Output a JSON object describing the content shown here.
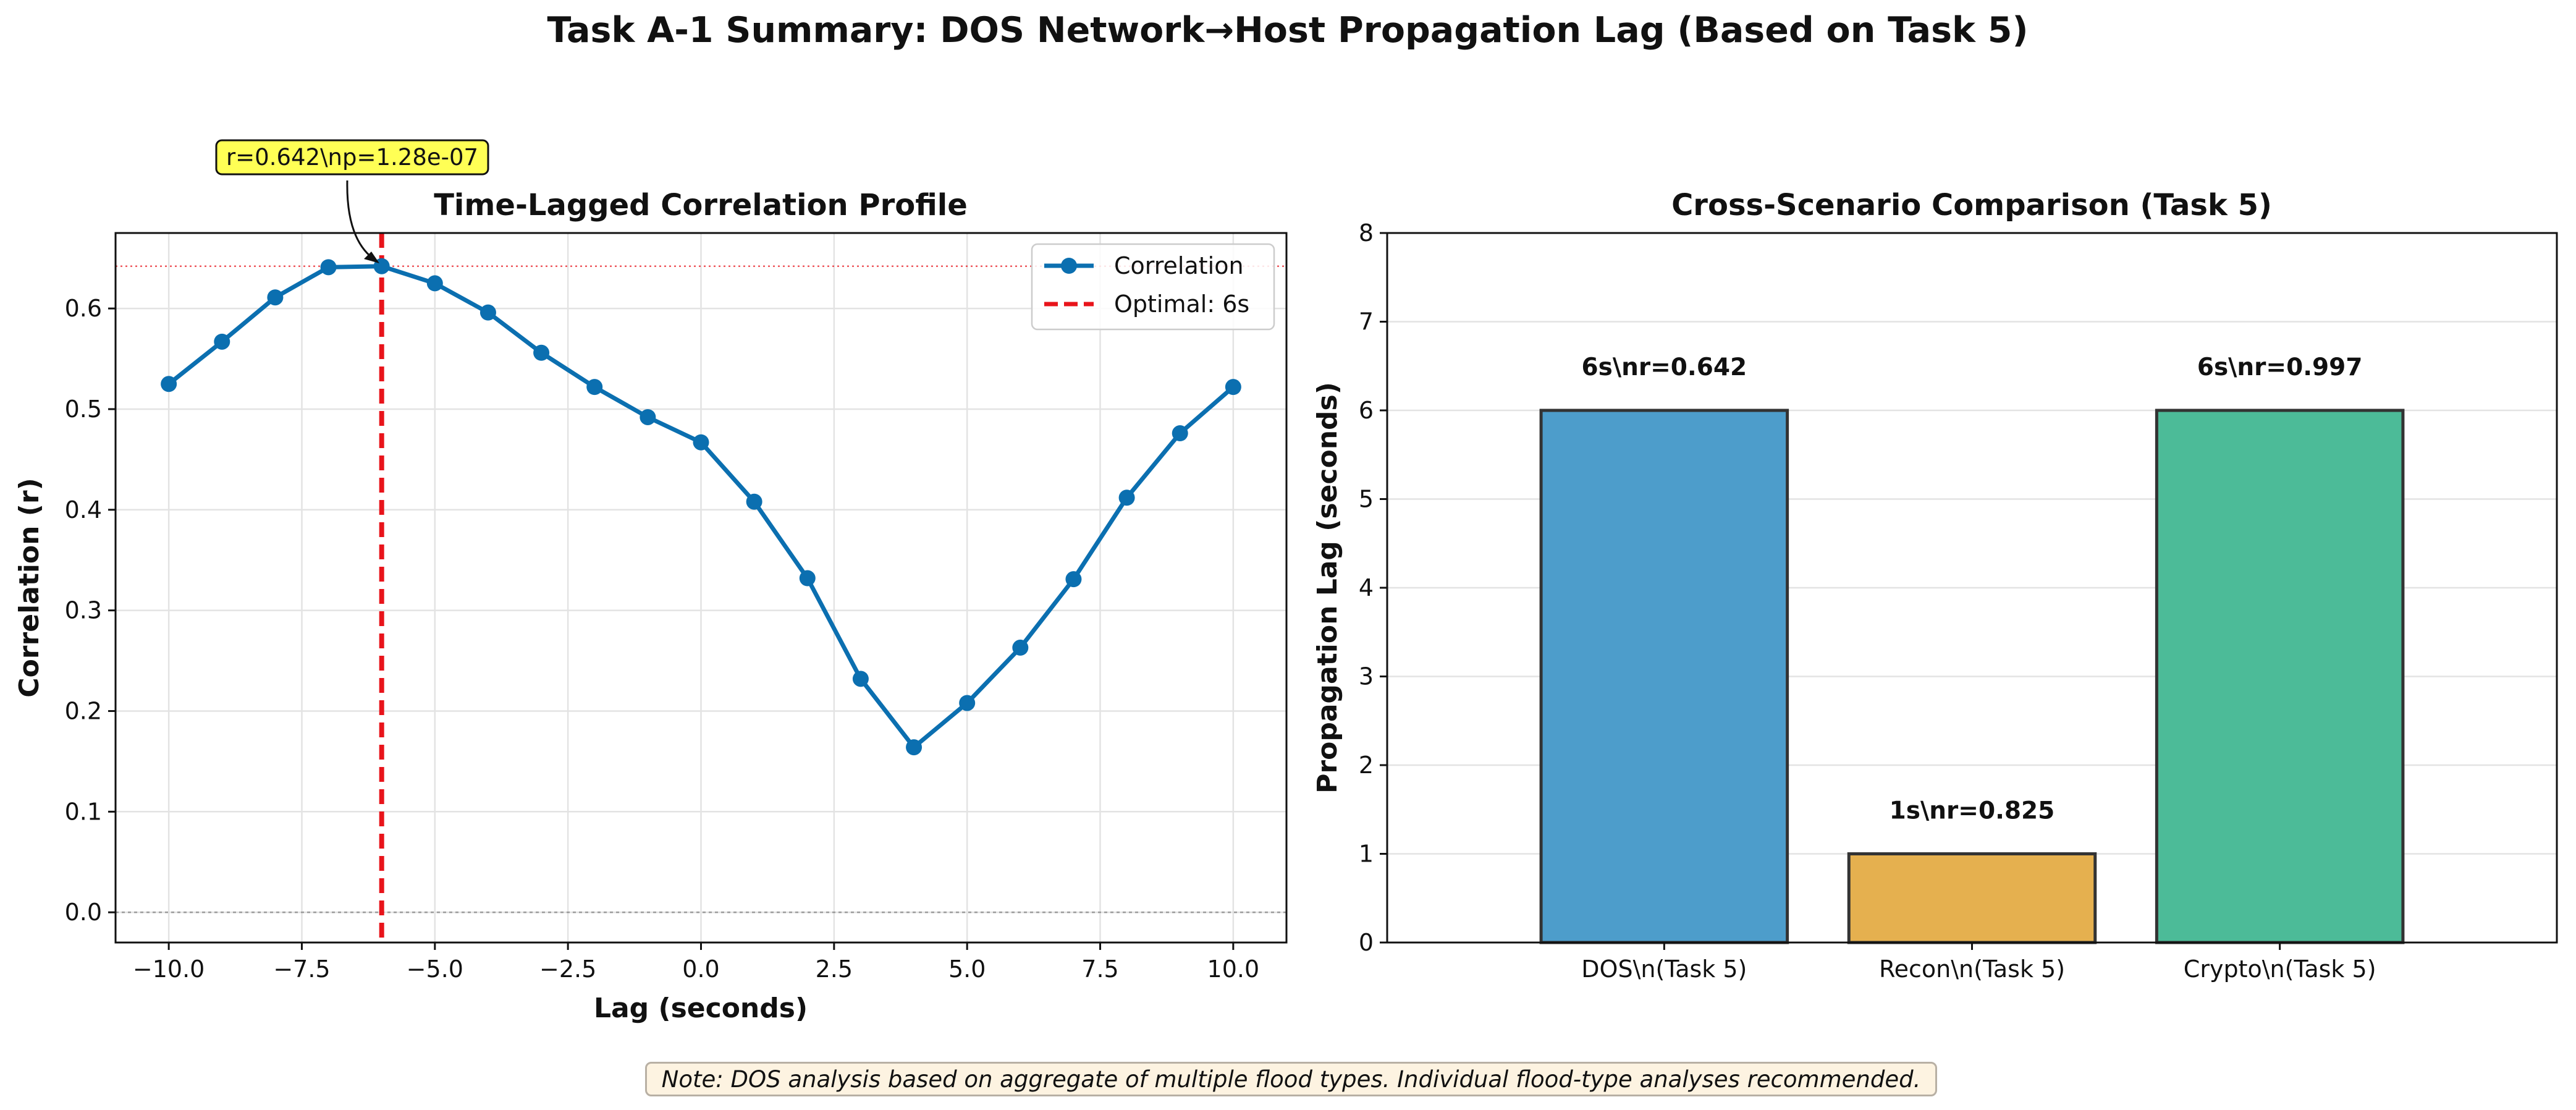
{
  "figure": {
    "title": "Task A-1 Summary: DOS Network→Host Propagation Lag (Based on Task 5)",
    "note": "Note: DOS analysis based on aggregate of multiple flood types. Individual flood-type analyses recommended."
  },
  "chart_data": [
    {
      "type": "line",
      "title": "Time-Lagged Correlation Profile",
      "xlabel": "Lag (seconds)",
      "ylabel": "Correlation (r)",
      "xlim": [
        -11.0,
        11.0
      ],
      "ylim": [
        -0.03,
        0.675
      ],
      "xticks": [
        -10.0,
        -7.5,
        -5.0,
        -2.5,
        0.0,
        2.5,
        5.0,
        7.5,
        10.0
      ],
      "xtick_labels": [
        "−10.0",
        "−7.5",
        "−5.0",
        "−2.5",
        "0.0",
        "2.5",
        "5.0",
        "7.5",
        "10.0"
      ],
      "yticks": [
        0.0,
        0.1,
        0.2,
        0.3,
        0.4,
        0.5,
        0.6
      ],
      "ytick_labels": [
        "0.0",
        "0.1",
        "0.2",
        "0.3",
        "0.4",
        "0.5",
        "0.6"
      ],
      "grid": true,
      "legend": "top-right",
      "series": [
        {
          "name": "Correlation",
          "color": "#0b6fb0",
          "x": [
            -10,
            -9,
            -8,
            -7,
            -6,
            -5,
            -4,
            -3,
            -2,
            -1,
            0,
            1,
            2,
            3,
            4,
            5,
            6,
            7,
            8,
            9,
            10
          ],
          "y": [
            0.525,
            0.567,
            0.611,
            0.641,
            0.642,
            0.625,
            0.596,
            0.556,
            0.522,
            0.492,
            0.467,
            0.408,
            0.332,
            0.232,
            0.164,
            0.208,
            0.263,
            0.331,
            0.412,
            0.476,
            0.522
          ]
        }
      ],
      "vline": {
        "x": -6,
        "label": "Optimal: 6s",
        "color": "#e8141b"
      },
      "hline_max": {
        "y": 0.642,
        "color": "#e8141b"
      },
      "hline_zero": {
        "y": 0.0,
        "color": "#888888"
      },
      "annotation": {
        "text": "r=0.642\\np=1.28e-07",
        "x": -6,
        "y": 0.642,
        "box_color": "#ffff55"
      }
    },
    {
      "type": "bar",
      "title": "Cross-Scenario Comparison (Task 5)",
      "xlabel": "",
      "ylabel": "Propagation Lag (seconds)",
      "ylim": [
        0,
        8
      ],
      "yticks": [
        0,
        1,
        2,
        3,
        4,
        5,
        6,
        7,
        8
      ],
      "ytick_labels": [
        "0",
        "1",
        "2",
        "3",
        "4",
        "5",
        "6",
        "7",
        "8"
      ],
      "grid": true,
      "categories": [
        "DOS\\n(Task 5)",
        "Recon\\n(Task 5)",
        "Crypto\\n(Task 5)"
      ],
      "values": [
        6,
        1,
        6
      ],
      "bar_labels": [
        "6s\\nr=0.642",
        "1s\\nr=0.825",
        "6s\\nr=0.997"
      ],
      "colors": [
        "#4d9dcb",
        "#e5b04f",
        "#4cbb98"
      ],
      "edge_color": "#333333"
    }
  ]
}
